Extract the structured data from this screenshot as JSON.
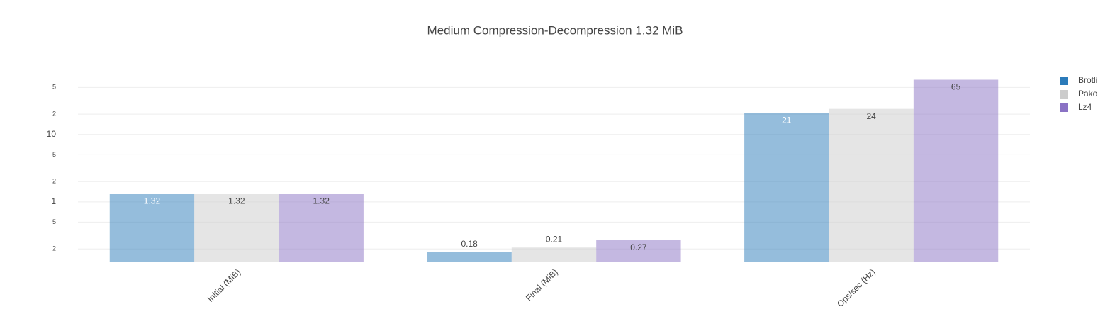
{
  "chart_data": {
    "type": "bar",
    "title": "Medium Compression-Decompression 1.32 MiB",
    "categories": [
      "Initial (MiB)",
      "Final (MiB)",
      "Ops/sec (Hz)"
    ],
    "series": [
      {
        "name": "Brotli",
        "color": "#2b7bba",
        "values": [
          1.32,
          0.18,
          21
        ]
      },
      {
        "name": "Pako",
        "color": "#cccccc",
        "values": [
          1.32,
          0.21,
          24
        ]
      },
      {
        "name": "Lz4",
        "color": "#8a72c4",
        "values": [
          1.32,
          0.27,
          65
        ]
      }
    ],
    "log_y": true,
    "ylim": [
      0.127,
      88
    ],
    "yticks": [
      {
        "value": 0.2,
        "label": "2"
      },
      {
        "value": 0.5,
        "label": "5"
      },
      1,
      2,
      5,
      10,
      {
        "value": 20,
        "label": "2"
      },
      {
        "value": 50,
        "label": "5"
      }
    ],
    "grid": true,
    "legend": "right"
  }
}
